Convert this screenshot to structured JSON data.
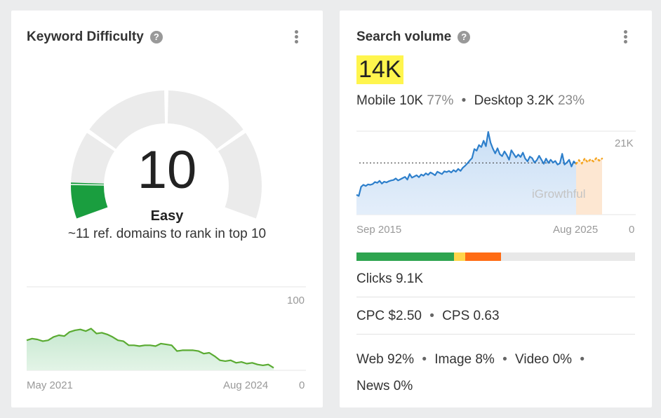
{
  "keyword_difficulty": {
    "title": "Keyword Difficulty",
    "help_icon": "question-mark-icon",
    "menu_icon": "kebab-menu-icon",
    "value": "10",
    "difficulty_label": "Easy",
    "description": "~11 ref. domains to rank in top 10",
    "gauge_fraction": 0.1,
    "gauge_color": "#1a9e3f",
    "chart_data": {
      "type": "area",
      "x_start_label": "May 2021",
      "x_end_label": "Aug 2024",
      "ylim": [
        0,
        100
      ],
      "y_max_label": "100",
      "y_min_label": "0",
      "values": [
        36,
        38,
        37,
        35,
        36,
        40,
        42,
        41,
        46,
        48,
        49,
        47,
        50,
        44,
        45,
        43,
        40,
        36,
        35,
        30,
        30,
        29,
        30,
        30,
        29,
        32,
        31,
        30,
        23,
        24,
        24,
        24,
        23,
        20,
        21,
        17,
        12,
        11,
        12,
        9,
        10,
        8,
        9,
        7,
        6,
        7,
        3
      ],
      "line_color": "#5aab32"
    }
  },
  "search_volume": {
    "title": "Search volume",
    "help_icon": "question-mark-icon",
    "menu_icon": "kebab-menu-icon",
    "total": "14K",
    "mobile_label": "Mobile",
    "mobile_value": "10K",
    "mobile_share": "77%",
    "desktop_label": "Desktop",
    "desktop_value": "3.2K",
    "desktop_share": "23%",
    "separator": "•",
    "chart_data": {
      "type": "line",
      "x_start_label": "Sep 2015",
      "x_end_label": "Aug 2025",
      "ylim": [
        0,
        21000
      ],
      "y_max_label": "21K",
      "y_min_label": "0",
      "average": 13000,
      "watermark": "iGrowthful",
      "line_color": "#2d7fcb",
      "forecast_color": "#f5a623",
      "values": [
        5000,
        4700,
        7000,
        7500,
        7200,
        7600,
        7500,
        7700,
        8200,
        8000,
        8500,
        7800,
        8300,
        8100,
        8400,
        8600,
        8700,
        9100,
        8600,
        8900,
        9200,
        9500,
        8800,
        10200,
        9300,
        9600,
        9900,
        9400,
        10100,
        9800,
        10400,
        10000,
        10600,
        10300,
        9900,
        10800,
        10500,
        10200,
        10900,
        10700,
        11000,
        10600,
        11200,
        10800,
        11500,
        11000,
        11800,
        12300,
        12900,
        13600,
        14200,
        16500,
        16100,
        17500,
        17000,
        18600,
        17200,
        20800,
        18100,
        16600,
        15400,
        16700,
        15200,
        14700,
        15900,
        15000,
        13800,
        16200,
        15300,
        14400,
        15100,
        14500,
        15600,
        14100,
        13400,
        14600,
        14200,
        13100,
        13700,
        14800,
        13800,
        12800,
        14100,
        13000,
        13800,
        13100,
        13500,
        12600,
        12900,
        15300,
        12600,
        13100,
        13800,
        12100,
        13400,
        12800
      ],
      "forecast": [
        12800,
        13700,
        12900,
        14100,
        13200,
        13900,
        13400,
        14200,
        13600,
        14100
      ]
    },
    "intent_bar": [
      {
        "name": "segment-green",
        "fraction": 0.35,
        "color": "#2ea44f"
      },
      {
        "name": "segment-yellow",
        "fraction": 0.04,
        "color": "#ffd54a"
      },
      {
        "name": "segment-orange",
        "fraction": 0.13,
        "color": "#ff6c14"
      }
    ],
    "clicks_label": "Clicks",
    "clicks_value": "9.1K",
    "cpc_label": "CPC",
    "cpc_value": "$2.50",
    "cps_label": "CPS",
    "cps_value": "0.63",
    "web_label": "Web",
    "web_value": "92%",
    "image_label": "Image",
    "image_value": "8%",
    "video_label": "Video",
    "video_value": "0%",
    "news_label": "News",
    "news_value": "0%"
  }
}
